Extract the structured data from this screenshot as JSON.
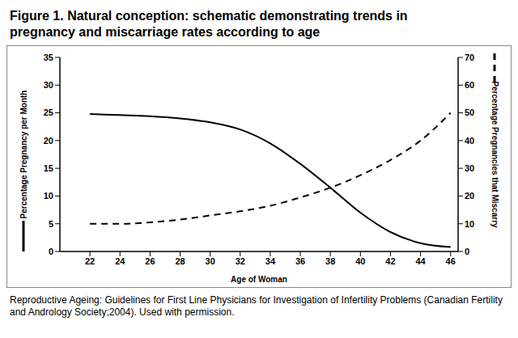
{
  "chart_data": {
    "type": "line",
    "title": "Figure 1. Natural conception: schematic demonstrating trends in pregnancy and miscarriage rates according to age",
    "caption": "Reproductive Ageing: Guidelines for First Line Physicians for Investigation of Infertility Problems (Canadian Fertility and Andrology Society;2004). Used with permission.",
    "x_label": "Age of Woman",
    "x": [
      22,
      24,
      26,
      28,
      30,
      32,
      34,
      36,
      38,
      40,
      42,
      44,
      46
    ],
    "xlim": [
      20,
      46.5
    ],
    "xticks": [
      22,
      24,
      26,
      28,
      30,
      32,
      34,
      36,
      38,
      40,
      42,
      44,
      46
    ],
    "ylim": [
      0,
      35
    ],
    "yticks": [
      0,
      5,
      10,
      15,
      20,
      25,
      30,
      35
    ],
    "y2lim": [
      0,
      70
    ],
    "y2ticks": [
      0,
      10,
      20,
      30,
      40,
      50,
      60,
      70
    ],
    "grid": false,
    "series": [
      {
        "name": "Percentage Pregnancy per Month",
        "color": "#000000",
        "line_style": "solid",
        "marker": "none",
        "values": [
          24.8,
          24.6,
          24.4,
          24,
          23.3,
          22,
          19.5,
          15.8,
          11.5,
          7,
          3.5,
          1.5,
          0.8
        ]
      },
      {
        "name": "Percentage Pregnancies that Miscarry",
        "color": "#000000",
        "line_style": "dashed",
        "marker": "none",
        "axis": "y2",
        "values": [
          10,
          10,
          10.5,
          11.5,
          13,
          14.5,
          16.5,
          19.5,
          23,
          27.5,
          33,
          40,
          50
        ]
      }
    ]
  }
}
